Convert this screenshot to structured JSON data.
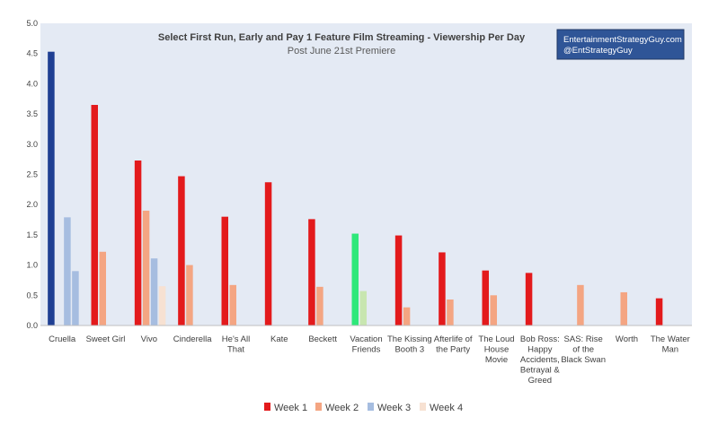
{
  "chart_data": {
    "type": "bar",
    "title": "Select First Run, Early and Pay 1 Feature Film Streaming - Viewership Per Day",
    "subtitle": "Post June 21st Premiere",
    "credit": [
      "EntertainmentStrategyGuy.com",
      "@EntStrategyGuy"
    ],
    "categories": [
      [
        "Cruella"
      ],
      [
        "Sweet Girl"
      ],
      [
        "Vivo"
      ],
      [
        "Cinderella"
      ],
      [
        "He's All",
        "That"
      ],
      [
        "Kate"
      ],
      [
        "Beckett"
      ],
      [
        "Vacation",
        "Friends"
      ],
      [
        "The Kissing",
        "Booth 3"
      ],
      [
        "Afterlife of",
        "the Party"
      ],
      [
        "The Loud",
        "House",
        "Movie"
      ],
      [
        "Bob Ross:",
        "Happy",
        "Accidents,",
        "Betrayal &",
        "Greed"
      ],
      [
        "SAS: Rise",
        "of the",
        "Black Swan"
      ],
      [
        "Worth"
      ],
      [
        "The Water",
        "Man"
      ]
    ],
    "series": [
      {
        "name": "Week 1",
        "color": "#e31a1c",
        "values": [
          4.53,
          3.65,
          2.73,
          2.47,
          1.8,
          2.37,
          1.76,
          1.52,
          1.49,
          1.21,
          0.91,
          0.87,
          null,
          null,
          0.45
        ]
      },
      {
        "name": "Week 2",
        "color": "#f4a582",
        "values": [
          null,
          1.22,
          1.9,
          1.0,
          0.67,
          null,
          0.64,
          0.57,
          0.3,
          0.43,
          0.5,
          null,
          0.67,
          0.55,
          null
        ]
      },
      {
        "name": "Week 3",
        "color": "#a6bde0",
        "values": [
          1.79,
          null,
          1.11,
          null,
          null,
          null,
          null,
          null,
          null,
          null,
          null,
          null,
          null,
          null,
          null
        ]
      },
      {
        "name": "Week 4",
        "color": "#f7e1d2",
        "values": [
          0.9,
          null,
          0.65,
          null,
          null,
          null,
          null,
          null,
          null,
          null,
          null,
          null,
          null,
          null,
          null
        ]
      }
    ],
    "special_colors": {
      "Cruella": [
        "#1f3f93",
        null,
        "#a6bde0",
        "#a6bde0"
      ],
      "Vacation Friends": [
        "#2ee87a",
        "#c8e6b0",
        null,
        null
      ]
    },
    "ylim": [
      0,
      5.0
    ],
    "yticks": [
      "0.0",
      "0.5",
      "1.0",
      "1.5",
      "2.0",
      "2.5",
      "3.0",
      "3.5",
      "4.0",
      "4.5",
      "5.0"
    ],
    "grid": false,
    "legend_position": "bottom",
    "plot_background": "#e4eaf4",
    "credit_box_color": "#2f5597"
  }
}
